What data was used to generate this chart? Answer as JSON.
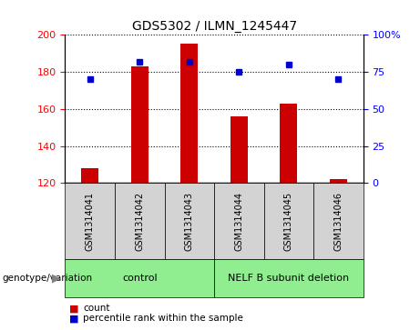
{
  "title": "GDS5302 / ILMN_1245447",
  "samples": [
    "GSM1314041",
    "GSM1314042",
    "GSM1314043",
    "GSM1314044",
    "GSM1314045",
    "GSM1314046"
  ],
  "counts": [
    128,
    183,
    195,
    156,
    163,
    122
  ],
  "percentiles": [
    70,
    82,
    82,
    75,
    80,
    70
  ],
  "ylim_left": [
    120,
    200
  ],
  "ylim_right": [
    0,
    100
  ],
  "yticks_left": [
    120,
    140,
    160,
    180,
    200
  ],
  "yticks_right": [
    0,
    25,
    50,
    75,
    100
  ],
  "bar_color": "#cc0000",
  "dot_color": "#0000cc",
  "bar_width": 0.35,
  "groups": [
    {
      "label": "control",
      "indices": [
        0,
        1,
        2
      ],
      "color": "#90ee90"
    },
    {
      "label": "NELF B subunit deletion",
      "indices": [
        3,
        4,
        5
      ],
      "color": "#90ee90"
    }
  ],
  "group_bg_color": "#d3d3d3",
  "genotype_label": "genotype/variation",
  "legend_count_label": "count",
  "legend_percentile_label": "percentile rank within the sample"
}
